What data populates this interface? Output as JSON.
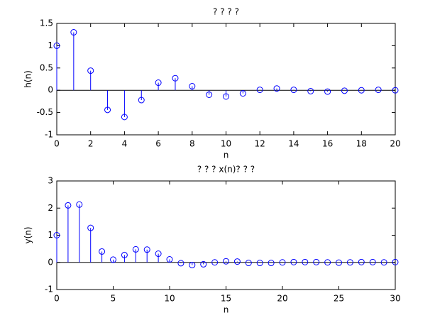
{
  "chart_data": [
    {
      "type": "stem",
      "title": "?  ?  ?  ?",
      "x_label": "n",
      "y_label": "h(n)",
      "color": "#0000ff",
      "x": [
        0,
        1,
        2,
        3,
        4,
        5,
        6,
        7,
        8,
        9,
        10,
        11,
        12,
        13,
        14,
        15,
        16,
        17,
        18,
        19,
        20
      ],
      "values": [
        1.0,
        1.3,
        0.44,
        -0.44,
        -0.6,
        -0.22,
        0.17,
        0.27,
        0.09,
        -0.1,
        -0.14,
        -0.07,
        0.01,
        0.04,
        0.01,
        -0.02,
        -0.03,
        -0.01,
        0.0,
        0.01,
        0.0
      ],
      "xlim": [
        0,
        20
      ],
      "xticks": [
        0,
        2,
        4,
        6,
        8,
        10,
        12,
        14,
        16,
        18,
        20
      ],
      "ylim": [
        -1,
        1.5
      ],
      "yticks": [
        -1,
        -0.5,
        0,
        0.5,
        1,
        1.5
      ]
    },
    {
      "type": "stem",
      "title": "?  ?  ?  x(n)?  ?  ?",
      "x_label": "n",
      "y_label": "y(n)",
      "color": "#0000ff",
      "x": [
        0,
        1,
        2,
        3,
        4,
        5,
        6,
        7,
        8,
        9,
        10,
        11,
        12,
        13,
        14,
        15,
        16,
        17,
        18,
        19,
        20,
        21,
        22,
        23,
        24,
        25,
        26,
        27,
        28,
        29,
        30
      ],
      "values": [
        1.0,
        2.1,
        2.13,
        1.27,
        0.4,
        0.1,
        0.27,
        0.48,
        0.47,
        0.32,
        0.11,
        -0.03,
        -0.1,
        -0.07,
        0.0,
        0.04,
        0.03,
        -0.02,
        -0.02,
        -0.02,
        0.0,
        0.01,
        0.01,
        0.01,
        0.0,
        -0.01,
        0.0,
        0.01,
        0.01,
        0.0,
        0.01
      ],
      "xlim": [
        0,
        30
      ],
      "xticks": [
        0,
        5,
        10,
        15,
        20,
        25,
        30
      ],
      "ylim": [
        -1,
        3
      ],
      "yticks": [
        -1,
        0,
        1,
        2,
        3
      ]
    }
  ]
}
